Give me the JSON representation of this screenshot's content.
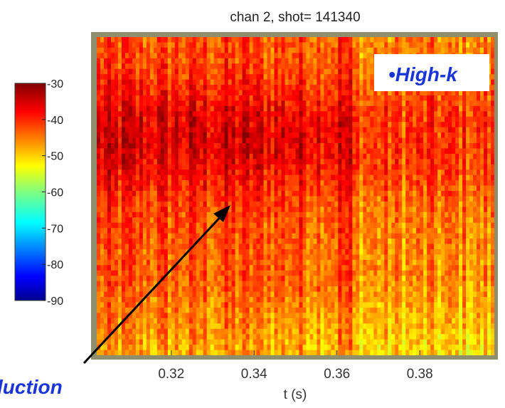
{
  "chart_data": {
    "type": "heatmap",
    "title": "chan 2, shot= 141340",
    "xlabel": "t (s)",
    "ylabel": "",
    "xlim": [
      0.302,
      0.398
    ],
    "xticks": [
      0.32,
      0.34,
      0.36,
      0.38
    ],
    "xtick_labels": [
      "0.32",
      "0.34",
      "0.36",
      "0.38"
    ],
    "colorbar": {
      "colormap": "jet",
      "range": [
        -90,
        -30
      ],
      "ticks": [
        -30,
        -40,
        -50,
        -60,
        -70,
        -80,
        -90
      ],
      "tick_labels": [
        "-30",
        "-40",
        "-50",
        "-60",
        "-70",
        "-80",
        "-90"
      ]
    },
    "value_range_shown": [
      -58,
      -30
    ],
    "features": {
      "strong_band_time_range": [
        0.302,
        0.36
      ],
      "band_center_fraction_of_height": 0.32,
      "vertical_streak_at_t": 0.362
    }
  },
  "annotations": {
    "high_k": "•High-k",
    "bottom_left": "luction"
  }
}
